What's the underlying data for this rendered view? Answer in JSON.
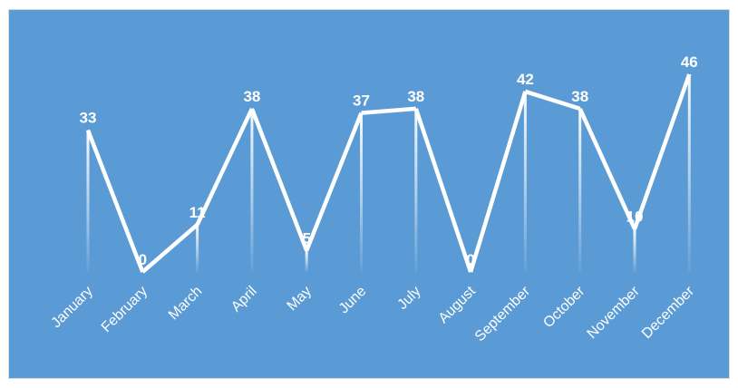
{
  "chart_data": {
    "type": "line",
    "categories": [
      "January",
      "February",
      "March",
      "April",
      "May",
      "June",
      "July",
      "August",
      "September",
      "October",
      "November",
      "December"
    ],
    "series": [
      {
        "values": [
          33,
          0,
          11,
          38,
          5,
          37,
          38,
          0,
          42,
          38,
          10,
          46
        ]
      }
    ],
    "title": "",
    "xlabel": "",
    "ylabel": "",
    "ylim": [
      0,
      50
    ],
    "grid": false,
    "legend": "none",
    "data_labels": true,
    "drop_lines": true,
    "colors": {
      "background": "#5b9bd5",
      "line": "#ffffff",
      "text": "#ffffff"
    }
  }
}
